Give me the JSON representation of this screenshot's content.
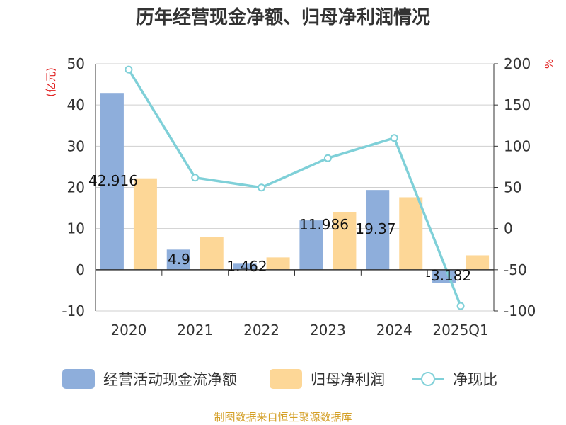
{
  "chart_data": {
    "type": "bar",
    "title": "历年经营现金净额、归母净利润情况",
    "categories": [
      "2020",
      "2021",
      "2022",
      "2023",
      "2024",
      "2025Q1"
    ],
    "y_left": {
      "unit": "(亿元)",
      "ticks": [
        50,
        40,
        30,
        20,
        10,
        0,
        -10
      ],
      "range": [
        -10,
        50
      ]
    },
    "y_right": {
      "unit": "%",
      "ticks": [
        200,
        150,
        100,
        50,
        0,
        -50,
        -100
      ],
      "range": [
        -100,
        200
      ]
    },
    "series": [
      {
        "name": "经营活动现金流净额",
        "type": "bar",
        "axis": "left",
        "color": "#8eaedb",
        "values": [
          42.916,
          4.9,
          1.462,
          11.986,
          19.37,
          -3.182
        ],
        "labels": [
          "42.916",
          "4.9",
          "1.462",
          "11.986",
          "19.37",
          "-3.182"
        ]
      },
      {
        "name": "归母净利润",
        "type": "bar",
        "axis": "left",
        "color": "#fdd797",
        "values": [
          22.2,
          7.9,
          3.0,
          14.0,
          17.6,
          3.5
        ]
      },
      {
        "name": "净现比",
        "type": "line",
        "axis": "right",
        "color": "#7fd0d8",
        "values": [
          193,
          61.8,
          49.8,
          85.5,
          110,
          -94
        ]
      }
    ],
    "grid": true,
    "legend_position": "bottom"
  },
  "colors": {
    "unit_text": "#e02020",
    "source_text": "#d4a028",
    "axis": "#333333",
    "grid": "#cfcfcf"
  },
  "source": "制图数据来自恒生聚源数据库"
}
